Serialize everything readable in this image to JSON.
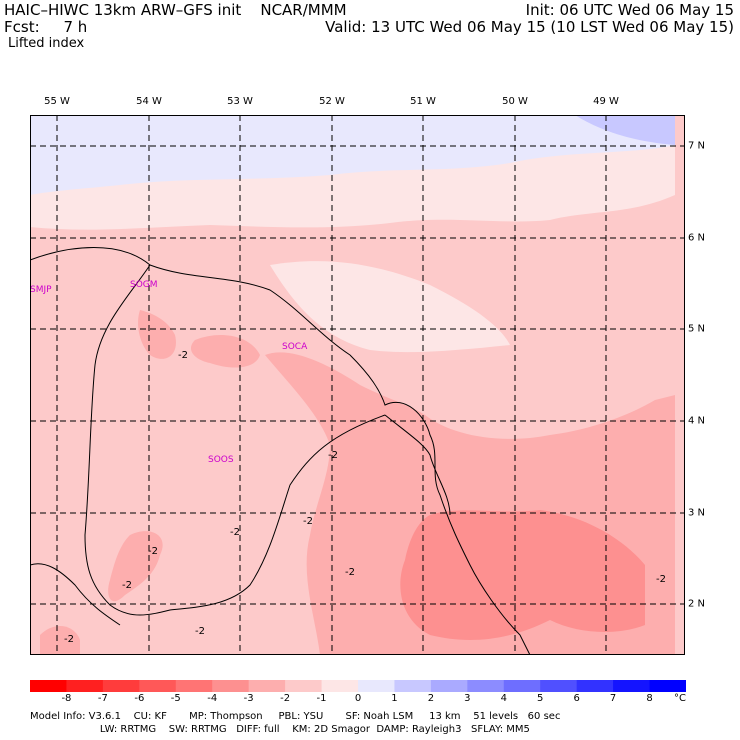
{
  "header": {
    "title": "HAIC–HIWC 13km ARW–GFS init    NCAR/MMM",
    "init": "Init: 06 UTC Wed 06 May 15",
    "fcst": "Fcst:     7 h",
    "valid": "Valid: 13 UTC Wed 06 May 15 (10 LST Wed 06 May 15)",
    "field": "Lifted index"
  },
  "lon_labels": [
    "55 W",
    "54 W",
    "53 W",
    "52 W",
    "51 W",
    "50 W",
    "49 W"
  ],
  "lat_labels": [
    "7 N",
    "6 N",
    "5 N",
    "4 N",
    "3 N",
    "2 N"
  ],
  "stations": [
    "SMJP",
    "SOGM",
    "SOCA",
    "SOOS"
  ],
  "contour_labels": [
    "-2",
    "-2",
    "-2",
    "-2",
    "-2",
    "-2",
    "-2",
    "-2",
    "-2",
    "-2"
  ],
  "colorbar": {
    "labels": [
      "-8",
      "-7",
      "-6",
      "-5",
      "-4",
      "-3",
      "-2",
      "-1",
      "0",
      "1",
      "2",
      "3",
      "4",
      "5",
      "6",
      "7",
      "8"
    ],
    "unit": "°C",
    "colors": [
      "#ff0000",
      "#ff2020",
      "#ff3c3c",
      "#ff5858",
      "#ff7474",
      "#fd9090",
      "#fdaeae",
      "#fdcaca",
      "#fde6e6",
      "#e8e8fd",
      "#c8c8ff",
      "#aaaaff",
      "#8c8cff",
      "#6e6eff",
      "#5050ff",
      "#3232ff",
      "#1414ff",
      "#0000ff"
    ]
  },
  "footer": {
    "line1": "Model Info: V3.6.1    CU: KF       MP: Thompson     PBL: YSU       SF: Noah LSM     13 km    51 levels   60 sec",
    "line2": "                      LW: RRTMG    SW: RRTMG   DIFF: full    KM: 2D Smagor  DAMP: Rayleigh3   SFLAY: MM5"
  }
}
